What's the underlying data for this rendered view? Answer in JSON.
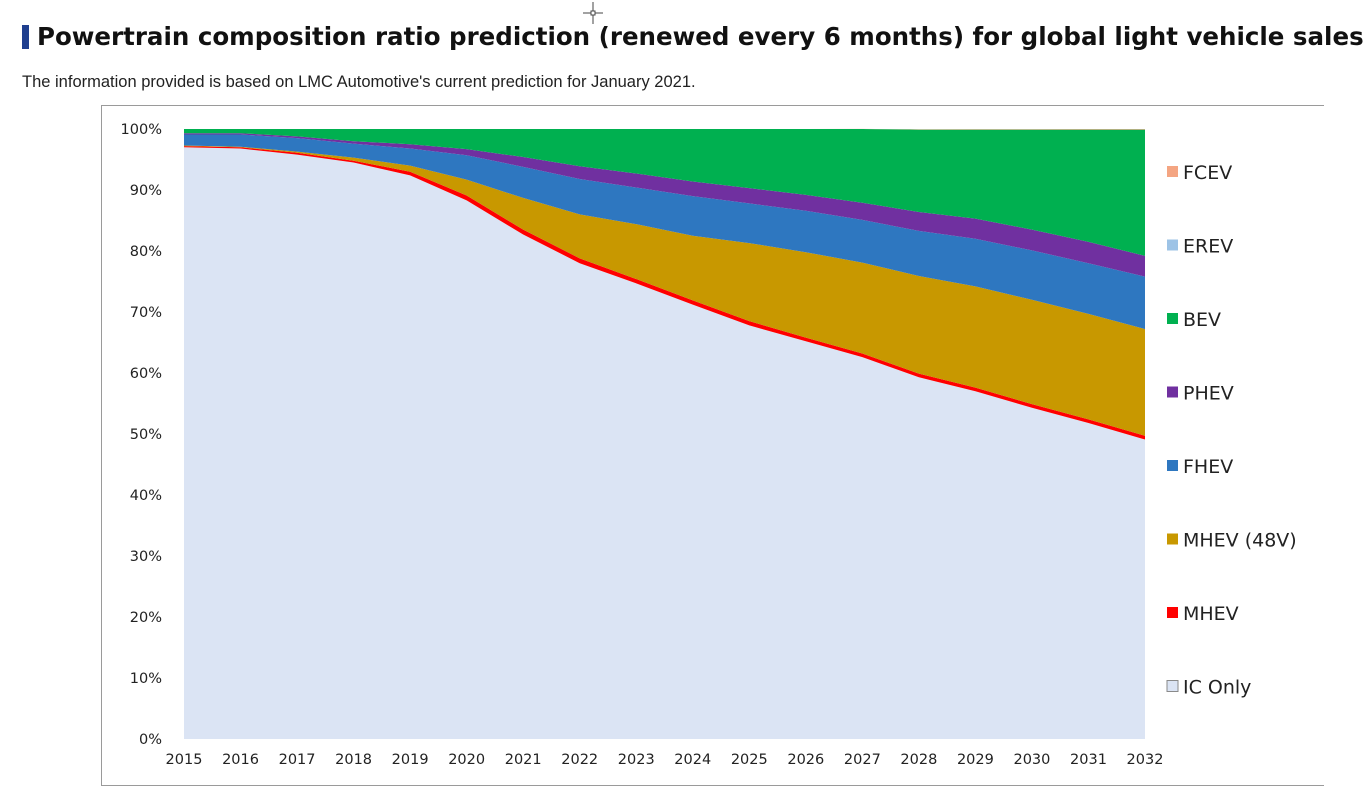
{
  "header": {
    "title": "Powertrain composition ratio prediction (renewed every 6 months) for global light vehicle sales",
    "subtitle": "The information provided is based on LMC Automotive's current prediction for January 2021."
  },
  "chart_data": {
    "type": "area",
    "stacked": true,
    "percent": true,
    "title": "",
    "xlabel": "",
    "ylabel": "",
    "ylim": [
      0,
      100
    ],
    "yticks": [
      "0%",
      "10%",
      "20%",
      "30%",
      "40%",
      "50%",
      "60%",
      "70%",
      "80%",
      "90%",
      "100%"
    ],
    "x": [
      "2015",
      "2016",
      "2017",
      "2018",
      "2019",
      "2020",
      "2021",
      "2022",
      "2023",
      "2024",
      "2025",
      "2026",
      "2027",
      "2028",
      "2029",
      "2030",
      "2031",
      "2032"
    ],
    "legend_position": "right",
    "series": [
      {
        "name": "IC Only",
        "color": "#dbe4f4",
        "values": [
          97.0,
          96.8,
          95.8,
          94.5,
          92.4,
          88.3,
          82.7,
          78.0,
          74.7,
          71.2,
          67.8,
          65.2,
          62.6,
          59.3,
          57.0,
          54.3,
          51.8,
          49.1
        ]
      },
      {
        "name": "MHEV",
        "color": "#ff0000",
        "values": [
          0.2,
          0.2,
          0.3,
          0.3,
          0.6,
          0.8,
          0.8,
          0.8,
          0.7,
          0.7,
          0.7,
          0.6,
          0.6,
          0.6,
          0.6,
          0.6,
          0.6,
          0.6
        ]
      },
      {
        "name": "MHEV (48V)",
        "color": "#c89800",
        "values": [
          0.1,
          0.1,
          0.2,
          0.5,
          1.0,
          2.6,
          5.2,
          7.2,
          9.0,
          10.6,
          12.8,
          14.0,
          14.9,
          16.0,
          16.6,
          17.1,
          17.3,
          17.5
        ]
      },
      {
        "name": "FHEV",
        "color": "#2e77c0",
        "values": [
          1.8,
          2.0,
          2.2,
          2.3,
          2.8,
          4.0,
          5.1,
          5.8,
          6.0,
          6.5,
          6.5,
          6.8,
          7.0,
          7.4,
          7.8,
          8.1,
          8.3,
          8.6
        ]
      },
      {
        "name": "PHEV",
        "color": "#7030a0",
        "values": [
          0.2,
          0.2,
          0.3,
          0.4,
          0.7,
          1.0,
          1.6,
          2.1,
          2.3,
          2.4,
          2.5,
          2.6,
          2.8,
          3.1,
          3.3,
          3.4,
          3.5,
          3.4
        ]
      },
      {
        "name": "BEV",
        "color": "#00b050",
        "values": [
          0.7,
          0.7,
          1.2,
          2.0,
          2.5,
          3.3,
          4.6,
          6.1,
          7.3,
          8.6,
          9.7,
          10.8,
          12.1,
          13.5,
          14.6,
          16.4,
          18.4,
          20.7
        ]
      },
      {
        "name": "EREV",
        "color": "#9dc3e6",
        "values": [
          0,
          0,
          0,
          0,
          0,
          0,
          0,
          0,
          0,
          0,
          0,
          0,
          0,
          0,
          0,
          0,
          0,
          0
        ]
      },
      {
        "name": "FCEV",
        "color": "#f4a582",
        "values": [
          0,
          0,
          0,
          0,
          0,
          0,
          0,
          0,
          0,
          0,
          0,
          0,
          0.02,
          0.05,
          0.07,
          0.08,
          0.1,
          0.1
        ]
      }
    ],
    "legend_order": [
      "FCEV",
      "EREV",
      "BEV",
      "PHEV",
      "FHEV",
      "MHEV (48V)",
      "MHEV",
      "IC Only"
    ]
  }
}
